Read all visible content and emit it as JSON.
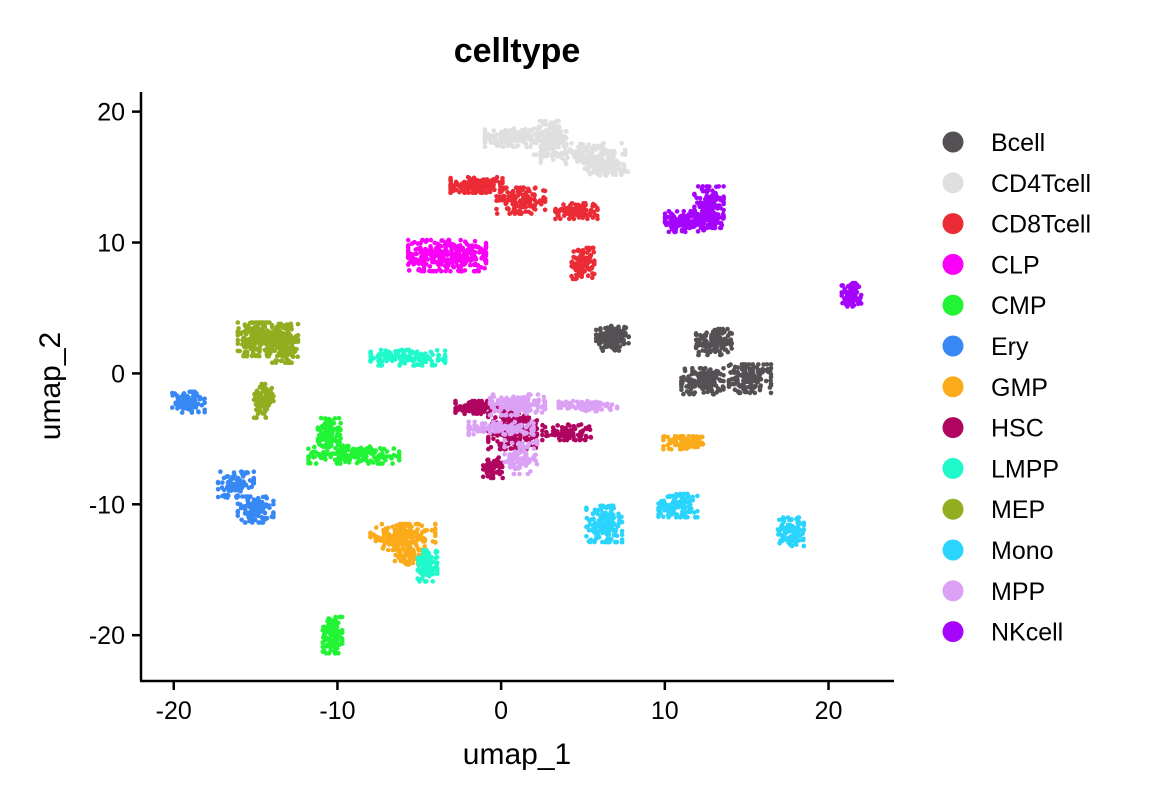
{
  "chart_data": {
    "type": "scatter",
    "title": "celltype",
    "xlabel": "umap_1",
    "ylabel": "umap_2",
    "xlim": [
      -22,
      24
    ],
    "ylim": [
      -23.5,
      21.5
    ],
    "xticks": [
      -20,
      -10,
      0,
      10,
      20
    ],
    "yticks": [
      20,
      10,
      0,
      -10,
      -20
    ],
    "grid": false,
    "legend_position": "right",
    "series": [
      {
        "name": "Bcell",
        "color": "#545054",
        "clusters": [
          {
            "cx": 6.8,
            "cy": 2.7,
            "rx": 1.0,
            "ry": 1.0,
            "n": 140
          },
          {
            "cx": 13.0,
            "cy": 2.4,
            "rx": 1.1,
            "ry": 1.0,
            "n": 130
          },
          {
            "cx": 12.3,
            "cy": -0.6,
            "rx": 1.3,
            "ry": 1.0,
            "n": 140
          },
          {
            "cx": 15.2,
            "cy": -0.4,
            "rx": 1.3,
            "ry": 1.1,
            "n": 150
          }
        ]
      },
      {
        "name": "CD4Tcell",
        "color": "#E0DFE0",
        "clusters": [
          {
            "cx": 0.6,
            "cy": 18.0,
            "rx": 1.6,
            "ry": 0.7,
            "n": 150
          },
          {
            "cx": 3.0,
            "cy": 18.0,
            "rx": 1.0,
            "ry": 1.3,
            "n": 130
          },
          {
            "cx": 5.0,
            "cy": 16.8,
            "rx": 2.6,
            "ry": 0.8,
            "n": 170
          },
          {
            "cx": 6.5,
            "cy": 15.7,
            "rx": 1.4,
            "ry": 0.6,
            "n": 110
          }
        ]
      },
      {
        "name": "CD8Tcell",
        "color": "#EB2B35",
        "clusters": [
          {
            "cx": -1.5,
            "cy": 14.4,
            "rx": 1.6,
            "ry": 0.6,
            "n": 150
          },
          {
            "cx": 1.2,
            "cy": 13.2,
            "rx": 1.5,
            "ry": 1.0,
            "n": 140
          },
          {
            "cx": 4.6,
            "cy": 12.4,
            "rx": 1.3,
            "ry": 0.6,
            "n": 110
          },
          {
            "cx": 5.0,
            "cy": 8.4,
            "rx": 0.7,
            "ry": 1.2,
            "n": 110
          }
        ]
      },
      {
        "name": "CLP",
        "color": "#FB00F7",
        "clusters": [
          {
            "cx": -3.3,
            "cy": 9.0,
            "rx": 2.4,
            "ry": 1.2,
            "n": 320
          }
        ]
      },
      {
        "name": "CMP",
        "color": "#21F434",
        "clusters": [
          {
            "cx": -10.5,
            "cy": -4.5,
            "rx": 0.7,
            "ry": 1.1,
            "n": 100
          },
          {
            "cx": -9.0,
            "cy": -6.2,
            "rx": 2.8,
            "ry": 0.7,
            "n": 180
          },
          {
            "cx": -10.3,
            "cy": -20.0,
            "rx": 0.6,
            "ry": 1.4,
            "n": 110
          }
        ]
      },
      {
        "name": "Ery",
        "color": "#3788F4",
        "clusters": [
          {
            "cx": -19.1,
            "cy": -2.2,
            "rx": 1.0,
            "ry": 0.8,
            "n": 110
          },
          {
            "cx": -16.2,
            "cy": -8.5,
            "rx": 1.1,
            "ry": 1.0,
            "n": 90
          },
          {
            "cx": -15.0,
            "cy": -10.4,
            "rx": 1.1,
            "ry": 1.0,
            "n": 120
          }
        ]
      },
      {
        "name": "GMP",
        "color": "#FBAA1A",
        "clusters": [
          {
            "cx": -6.0,
            "cy": -12.5,
            "rx": 2.0,
            "ry": 1.0,
            "n": 190
          },
          {
            "cx": -5.5,
            "cy": -14.0,
            "rx": 1.0,
            "ry": 0.6,
            "n": 70
          },
          {
            "cx": 11.2,
            "cy": -5.3,
            "rx": 1.3,
            "ry": 0.5,
            "n": 90
          }
        ]
      },
      {
        "name": "HSC",
        "color": "#AF0561",
        "clusters": [
          {
            "cx": -1.5,
            "cy": -2.6,
            "rx": 1.3,
            "ry": 0.5,
            "n": 90
          },
          {
            "cx": 0.7,
            "cy": -4.3,
            "rx": 1.5,
            "ry": 1.5,
            "n": 220
          },
          {
            "cx": -0.5,
            "cy": -7.2,
            "rx": 0.6,
            "ry": 0.8,
            "n": 60
          },
          {
            "cx": 4.0,
            "cy": -4.5,
            "rx": 1.5,
            "ry": 0.6,
            "n": 90
          }
        ]
      },
      {
        "name": "LMPP",
        "color": "#1FF9CC",
        "clusters": [
          {
            "cx": -5.7,
            "cy": 1.2,
            "rx": 2.3,
            "ry": 0.6,
            "n": 170
          },
          {
            "cx": -4.5,
            "cy": -14.7,
            "rx": 0.6,
            "ry": 1.2,
            "n": 90
          }
        ]
      },
      {
        "name": "MEP",
        "color": "#92AD1F",
        "clusters": [
          {
            "cx": -14.8,
            "cy": 2.6,
            "rx": 1.3,
            "ry": 1.3,
            "n": 200
          },
          {
            "cx": -13.2,
            "cy": 2.3,
            "rx": 0.8,
            "ry": 1.5,
            "n": 140
          },
          {
            "cx": -14.5,
            "cy": -2.1,
            "rx": 0.6,
            "ry": 1.3,
            "n": 90
          }
        ]
      },
      {
        "name": "Mono",
        "color": "#2AD4FD",
        "clusters": [
          {
            "cx": 6.3,
            "cy": -11.5,
            "rx": 1.1,
            "ry": 1.4,
            "n": 160
          },
          {
            "cx": 10.8,
            "cy": -10.1,
            "rx": 1.2,
            "ry": 0.9,
            "n": 120
          },
          {
            "cx": 17.7,
            "cy": -12.1,
            "rx": 0.8,
            "ry": 1.1,
            "n": 110
          }
        ]
      },
      {
        "name": "MPP",
        "color": "#DBA1F5",
        "clusters": [
          {
            "cx": 1.0,
            "cy": -2.4,
            "rx": 1.7,
            "ry": 0.8,
            "n": 160
          },
          {
            "cx": 0.0,
            "cy": -4.2,
            "rx": 2.0,
            "ry": 0.5,
            "n": 120
          },
          {
            "cx": 1.2,
            "cy": -6.4,
            "rx": 1.0,
            "ry": 1.3,
            "n": 100
          },
          {
            "cx": 5.3,
            "cy": -2.5,
            "rx": 1.8,
            "ry": 0.4,
            "n": 90
          }
        ]
      },
      {
        "name": "NKcell",
        "color": "#A505FC",
        "clusters": [
          {
            "cx": 11.2,
            "cy": 11.6,
            "rx": 1.2,
            "ry": 0.8,
            "n": 120
          },
          {
            "cx": 12.7,
            "cy": 12.7,
            "rx": 0.9,
            "ry": 1.6,
            "n": 170
          },
          {
            "cx": 21.4,
            "cy": 6.0,
            "rx": 0.6,
            "ry": 0.9,
            "n": 80
          }
        ]
      }
    ]
  }
}
